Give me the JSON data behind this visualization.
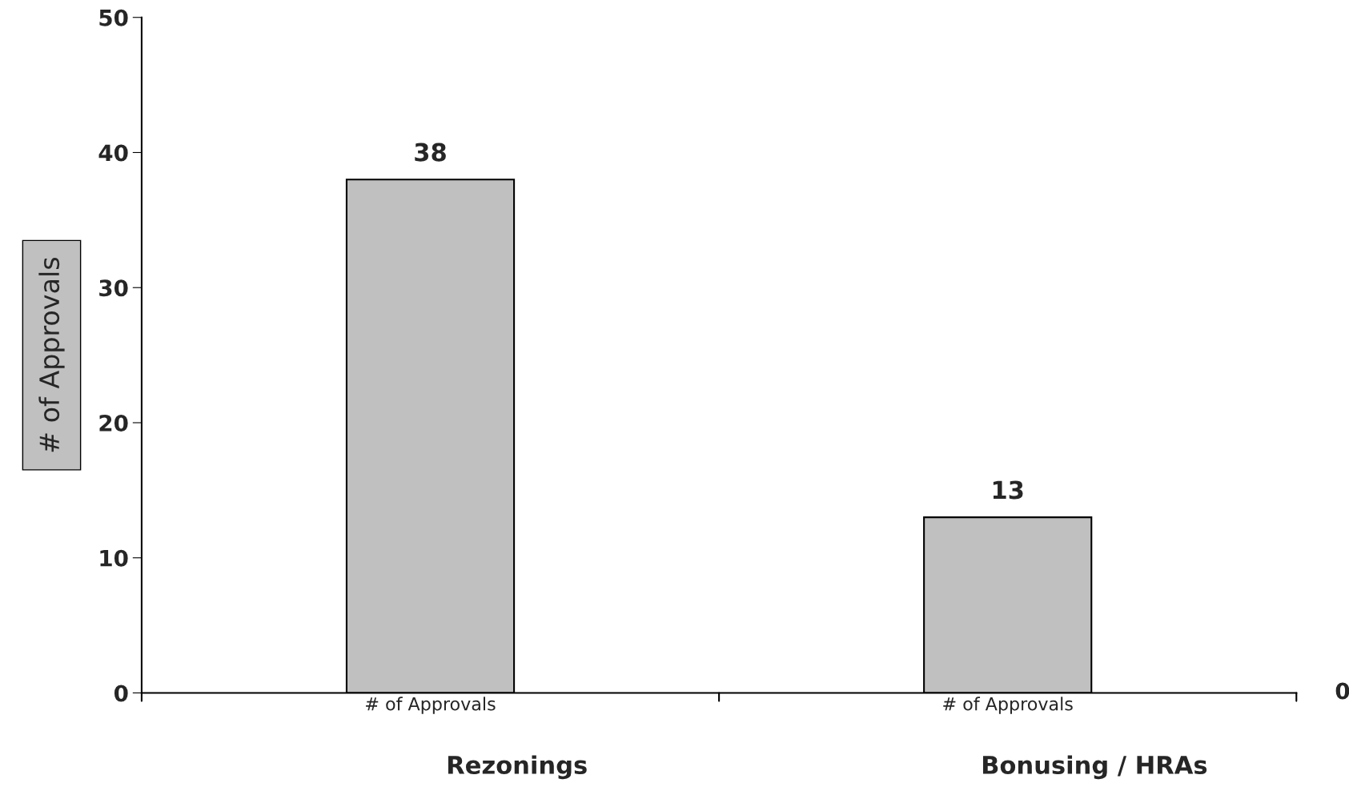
{
  "chart_data": {
    "type": "bar",
    "categories": [
      "# of Approvals",
      "# of Approvals"
    ],
    "values": [
      38,
      13
    ],
    "color": "#c0c0c0",
    "ylabel": "# of Approvals",
    "ylim": [
      0,
      50
    ],
    "yticks": [
      0,
      10,
      20,
      30,
      40,
      50
    ],
    "data_labels": true,
    "grid": false,
    "legend": false,
    "annotations": [
      "Rezonings",
      "Bonusing / HRAs",
      "0"
    ]
  }
}
